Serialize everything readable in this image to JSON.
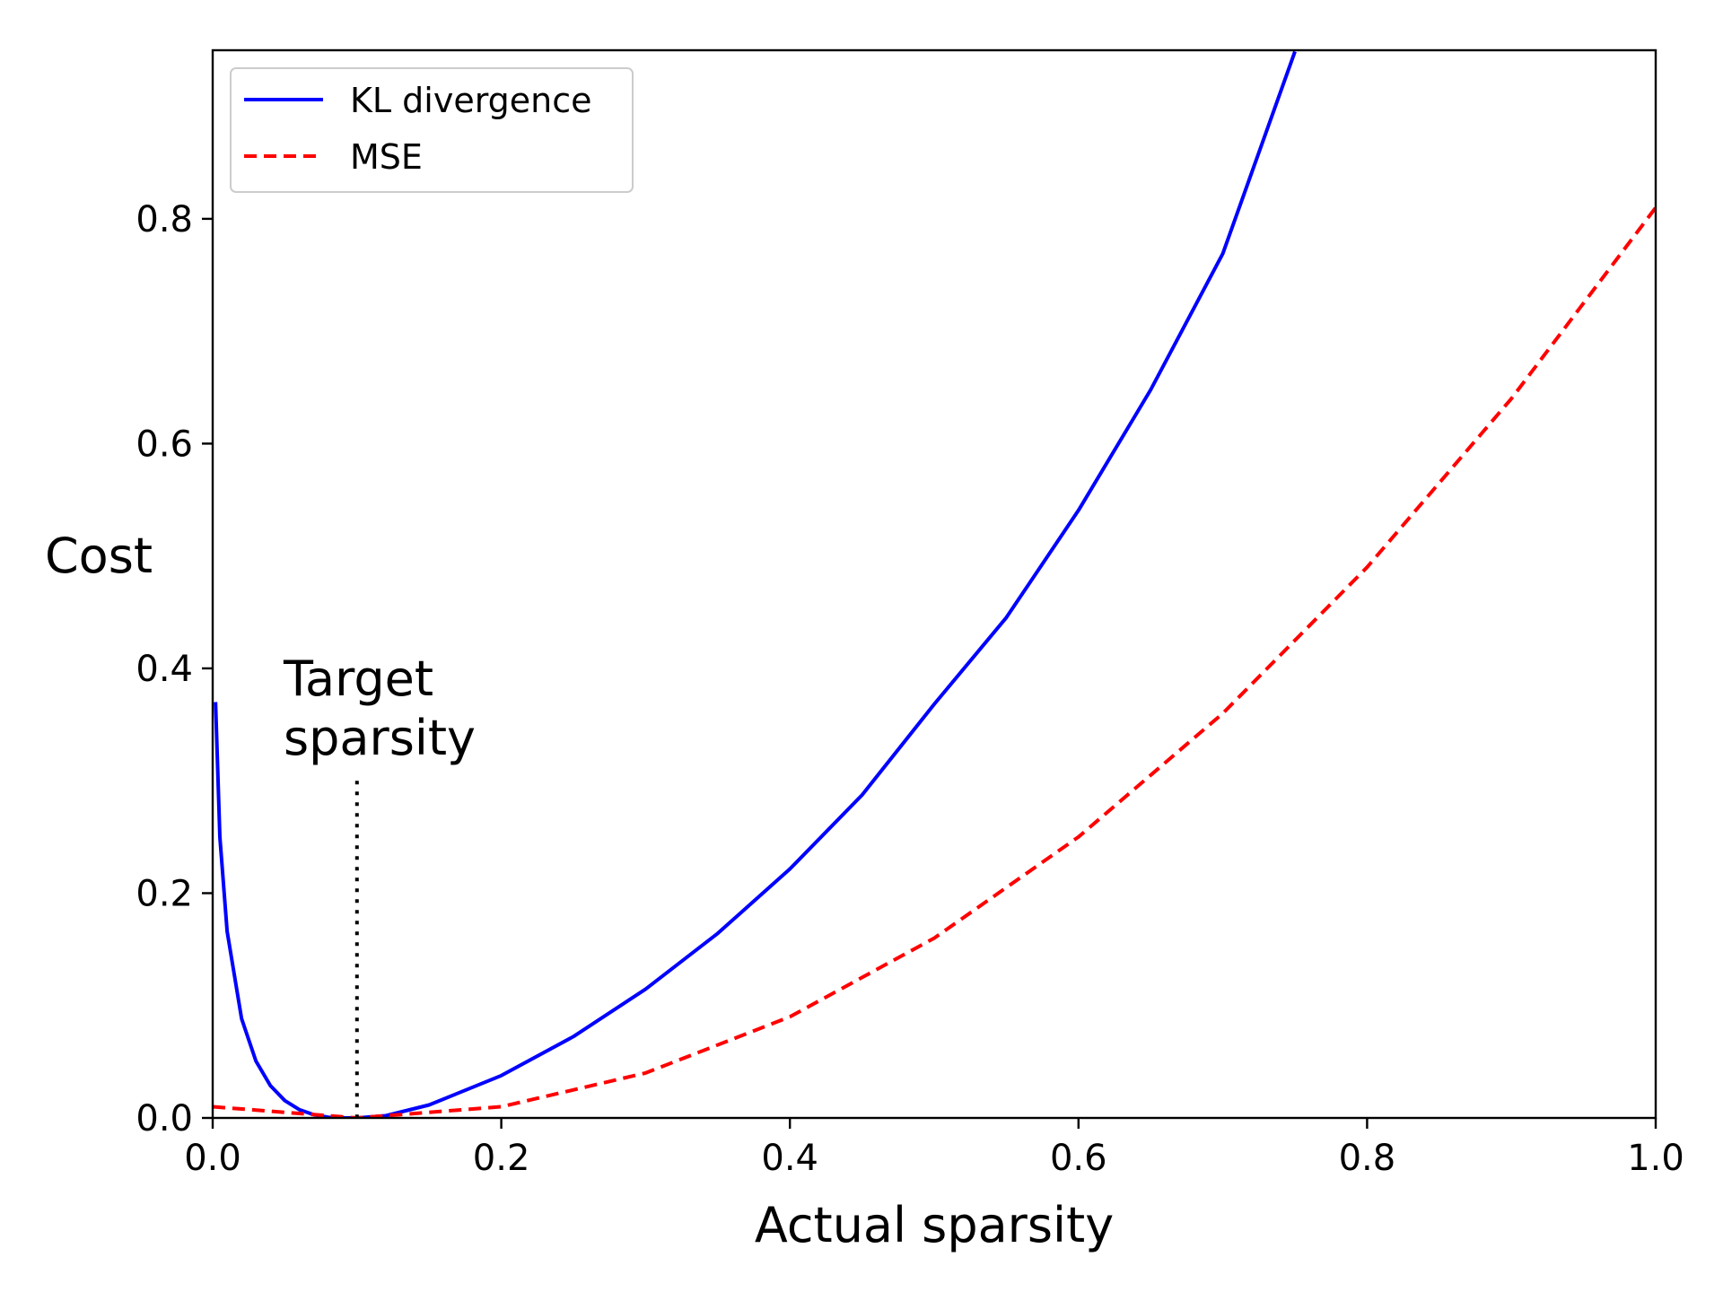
{
  "chart_data": {
    "type": "line",
    "title": "",
    "xlabel": "Actual sparsity",
    "ylabel": "Cost",
    "xlim": [
      0.0,
      1.0
    ],
    "ylim": [
      0.0,
      0.95
    ],
    "xticks": [
      "0.0",
      "0.2",
      "0.4",
      "0.6",
      "0.8",
      "1.0"
    ],
    "yticks": [
      "0.0",
      "0.2",
      "0.4",
      "0.6",
      "0.8"
    ],
    "grid": false,
    "legend_position": "top-left",
    "target_sparsity": 0.1,
    "annotation": {
      "lines": [
        "Target",
        "sparsity"
      ],
      "x": 0.1,
      "line_top_y": 0.3
    },
    "series": [
      {
        "name": "KL divergence",
        "color": "#0000ff",
        "style": "solid",
        "x": [
          0.002,
          0.005,
          0.01,
          0.02,
          0.03,
          0.04,
          0.05,
          0.06,
          0.07,
          0.08,
          0.09,
          0.1,
          0.12,
          0.15,
          0.2,
          0.25,
          0.3,
          0.35,
          0.4,
          0.45,
          0.5,
          0.55,
          0.6,
          0.65,
          0.7,
          0.75
        ],
        "values": [
          0.37,
          0.25,
          0.166,
          0.0884,
          0.0506,
          0.0287,
          0.0154,
          0.0074,
          0.0029,
          0.0006,
          0.0001,
          0.0,
          0.002,
          0.0116,
          0.0377,
          0.0724,
          0.1146,
          0.1642,
          0.2215,
          0.2873,
          0.3681,
          0.4452,
          0.5406,
          0.6478,
          0.769,
          0.9489
        ]
      },
      {
        "name": "MSE",
        "color": "#ff0000",
        "style": "dashed",
        "x": [
          0.0,
          0.1,
          0.2,
          0.3,
          0.4,
          0.5,
          0.6,
          0.7,
          0.8,
          0.9,
          1.0
        ],
        "values": [
          0.01,
          0.0,
          0.01,
          0.04,
          0.09,
          0.16,
          0.25,
          0.36,
          0.49,
          0.64,
          0.81
        ]
      }
    ]
  }
}
